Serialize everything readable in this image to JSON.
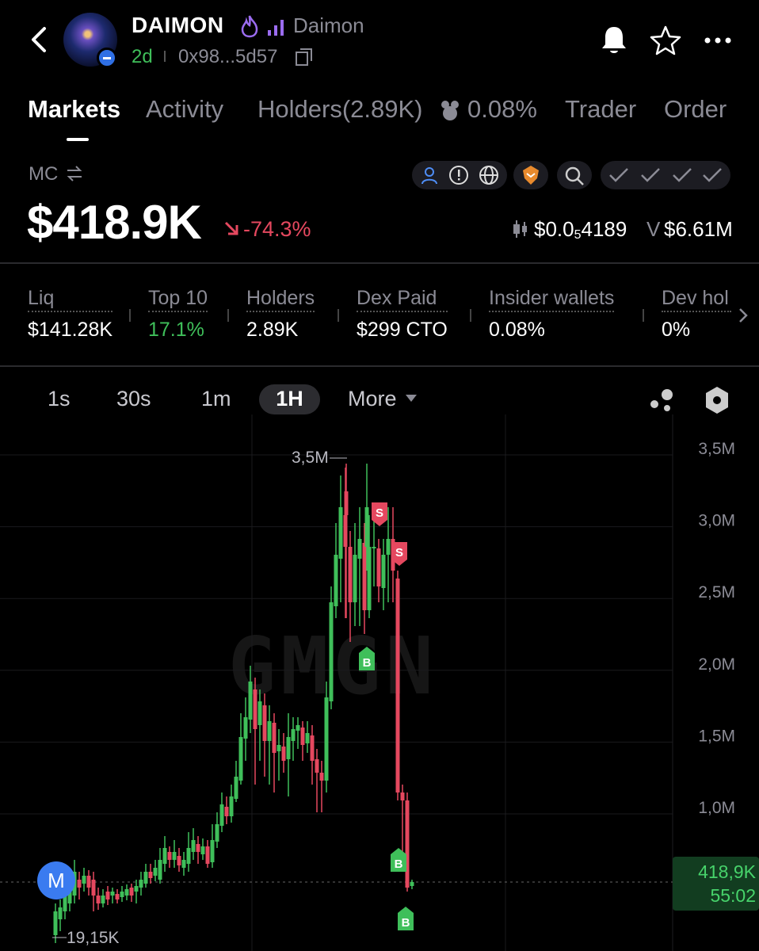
{
  "header": {
    "token_name": "DAIMON",
    "label": "Daimon",
    "age": "2d",
    "address": "0x98...5d57"
  },
  "tabs": [
    "Markets",
    "Activity",
    "Holders(2.89K)",
    "0.08%",
    "Trader",
    "Order"
  ],
  "market": {
    "mc_label": "MC",
    "mc_value": "$418.9K",
    "mc_change": "-74.3%",
    "price_prefix": "$0.0",
    "price_zeros": "5",
    "price_digits": "4189",
    "volume_label": "V",
    "volume_value": "$6.61M"
  },
  "stats": [
    {
      "label": "Liq",
      "value": "$141.28K",
      "color": "#ffffff"
    },
    {
      "label": "Top 10",
      "value": "17.1%",
      "color": "#3fbf5a"
    },
    {
      "label": "Holders",
      "value": "2.89K",
      "color": "#ffffff"
    },
    {
      "label": "Dex Paid",
      "value": "$299 CTO",
      "color": "#ffffff"
    },
    {
      "label": "Insider wallets",
      "value": "0.08%",
      "color": "#ffffff"
    },
    {
      "label": "Dev hol",
      "value": "0%",
      "color": "#ffffff"
    }
  ],
  "timeframes": {
    "options": [
      "1s",
      "30s",
      "1m",
      "1H"
    ],
    "selected": "1H",
    "more": "More"
  },
  "chart_data": {
    "type": "candlestick",
    "y_axis_labels": [
      "3,5M",
      "3,0M",
      "2,5M",
      "2,0M",
      "1,5M",
      "1,0M"
    ],
    "ylim": [
      0,
      3800000
    ],
    "max_label": "3,5M",
    "min_label": "19,15K",
    "current_value_label": "418,9K",
    "current_timer": "55:02",
    "current_value": 418900,
    "watermark": "GMGN",
    "up_color": "#3fbf5a",
    "down_color": "#e5485f",
    "trade_markers": [
      {
        "side": "S",
        "index": 50
      },
      {
        "side": "S",
        "index": 54
      },
      {
        "side": "B",
        "index": 46
      },
      {
        "side": "B",
        "index": 56
      },
      {
        "side": "B",
        "index": 57
      }
    ],
    "series_marker": "M"
  }
}
